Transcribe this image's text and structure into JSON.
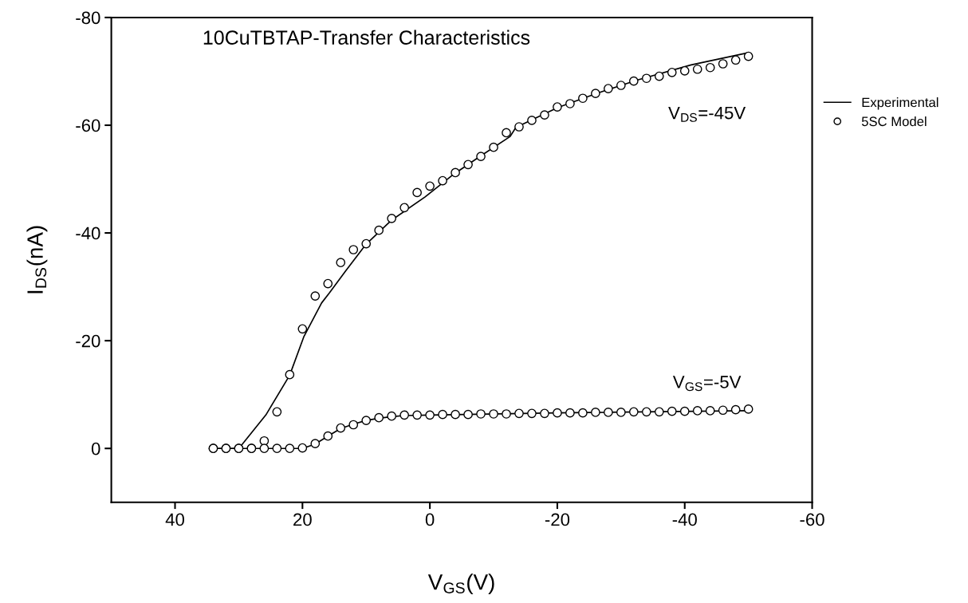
{
  "chart_data": {
    "type": "line",
    "title": "10CuTBTAP-Transfer Characteristics",
    "xlabel": "V$_{GS}$(V)",
    "ylabel": "I$_{DS}$(nA)",
    "xlim": [
      50,
      -60
    ],
    "xticks": [
      40,
      20,
      0,
      -20,
      -40,
      -60
    ],
    "ylim": [
      10,
      -80
    ],
    "yticks": [
      0,
      -20,
      -40,
      -60,
      -80
    ],
    "grid": false,
    "legend": "top right",
    "annotations": [
      "V$_{DS}$=-45V",
      "V$_{GS}$=-5V"
    ],
    "series": [
      {
        "name": "Experimental",
        "color": "#000000",
        "marker": "none",
        "line_style": "solid",
        "x": [
          34,
          30,
          29.5,
          25.75,
          22,
          19.8,
          17,
          15.75,
          13.25,
          10.1,
          6.1,
          0.75,
          -3.5,
          -7.6,
          -12.6,
          -13.5,
          -20.1,
          -26.4,
          -32.6,
          -41,
          -49.7
        ],
        "values": [
          0,
          0,
          -0.7,
          -6.2,
          -13.6,
          -20.7,
          -27,
          -28.9,
          -32.9,
          -37.8,
          -42.3,
          -46.7,
          -50.7,
          -54,
          -57.9,
          -59.6,
          -63.3,
          -66,
          -68.4,
          -71.2,
          -73.4
        ]
      },
      {
        "color": "#000000",
        "marker": "none",
        "line_style": "solid",
        "x": [
          34,
          20,
          18,
          16,
          14,
          12,
          10,
          8,
          6,
          4,
          0,
          -20,
          -50
        ],
        "values": [
          0,
          0,
          -0.8,
          -2.3,
          -3.7,
          -4.5,
          -5.2,
          -5.6,
          -5.9,
          -6.1,
          -6.2,
          -6.6,
          -7.0
        ]
      },
      {
        "name": "5SC Model",
        "type": "scatter",
        "color": "#000000",
        "marker": "circle",
        "x": [
          34,
          32,
          30,
          28,
          26,
          24,
          22,
          20,
          18,
          16,
          14,
          12,
          10,
          8,
          6,
          4,
          2,
          0,
          -2,
          -4,
          -6,
          -8,
          -10,
          -12,
          -14,
          -16,
          -18,
          -20,
          -22,
          -24,
          -26,
          -28,
          -30,
          -32,
          -34,
          -36,
          -38,
          -40,
          -42,
          -44,
          -46,
          -48,
          -50
        ],
        "values": [
          0,
          0,
          0,
          0,
          -1.4,
          -6.8,
          -13.7,
          -22.2,
          -28.3,
          -30.6,
          -34.5,
          -36.9,
          -38.0,
          -40.5,
          -42.7,
          -44.7,
          -47.5,
          -48.7,
          -49.7,
          -51.2,
          -52.7,
          -54.2,
          -55.9,
          -58.6,
          -59.7,
          -60.9,
          -61.9,
          -63.4,
          -64.0,
          -65.0,
          -65.9,
          -66.8,
          -67.4,
          -68.2,
          -68.7,
          -69.1,
          -69.8,
          -70.1,
          -70.4,
          -70.7,
          -71.4,
          -72.1,
          -72.8
        ]
      },
      {
        "type": "scatter",
        "color": "#000000",
        "marker": "circle",
        "x": [
          34,
          32,
          30,
          28,
          26,
          24,
          22,
          20,
          18,
          16,
          14,
          12,
          10,
          8,
          6,
          4,
          2,
          0,
          -2,
          -4,
          -6,
          -8,
          -10,
          -12,
          -14,
          -16,
          -18,
          -20,
          -22,
          -24,
          -26,
          -28,
          -30,
          -32,
          -34,
          -36,
          -38,
          -40,
          -42,
          -44,
          -46,
          -48,
          -50
        ],
        "values": [
          0,
          0,
          0,
          0,
          0,
          0,
          0,
          -0.1,
          -0.9,
          -2.3,
          -3.8,
          -4.4,
          -5.2,
          -5.7,
          -6.0,
          -6.2,
          -6.2,
          -6.2,
          -6.3,
          -6.3,
          -6.3,
          -6.4,
          -6.4,
          -6.4,
          -6.5,
          -6.5,
          -6.5,
          -6.6,
          -6.6,
          -6.6,
          -6.7,
          -6.7,
          -6.7,
          -6.8,
          -6.8,
          -6.8,
          -6.9,
          -6.9,
          -7.0,
          -7.0,
          -7.1,
          -7.2,
          -7.3
        ]
      }
    ]
  }
}
